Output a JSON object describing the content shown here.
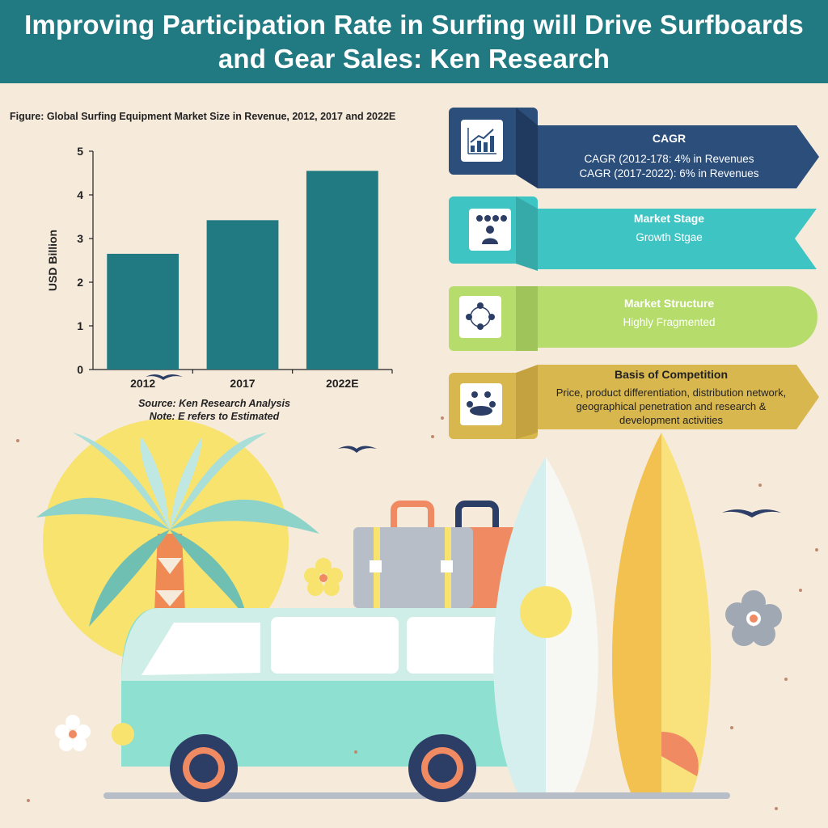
{
  "header": {
    "title": "Improving Participation Rate in Surfing will Drive Surfboards and Gear Sales: Ken Research"
  },
  "figure": {
    "caption": "Figure: Global Surfing Equipment Market Size in Revenue, 2012, 2017 and 2022E",
    "source": "Source: Ken Research Analysis",
    "note": "Note: E refers to Estimated"
  },
  "chart_data": {
    "type": "bar",
    "title": "Figure: Global Surfing Equipment Market Size in Revenue, 2012, 2017 and 2022E",
    "categories": [
      "2012",
      "2017",
      "2022E"
    ],
    "values": [
      2.65,
      3.42,
      4.55
    ],
    "ylabel": "USD Billion",
    "xlabel": "",
    "ylim": [
      0,
      5
    ],
    "yticks": [
      "0",
      "1",
      "2",
      "3",
      "4",
      "5"
    ],
    "bar_color": "#217a82",
    "grid": false
  },
  "cards": [
    {
      "title": "CAGR",
      "lines": [
        "CAGR (2012-178: 4% in Revenues",
        "CAGR (2017-2022): 6% in Revenues"
      ],
      "color": "#2b4e7a",
      "icon": "growth-chart-icon"
    },
    {
      "title": "Market Stage",
      "lines": [
        "Growth Stgae"
      ],
      "color": "#3fc4c4",
      "icon": "presenter-icon"
    },
    {
      "title": "Market Structure",
      "lines": [
        "Highly Fragmented"
      ],
      "color": "#b6dc6c",
      "icon": "network-people-icon"
    },
    {
      "title": "Basis of Competition",
      "lines": [
        "Price, product differentiation, distribution network,",
        "geographical penetration and research &",
        "development activities"
      ],
      "color": "#d9b74f",
      "icon": "meeting-table-icon"
    }
  ],
  "colors": {
    "header": "#217a82",
    "background": "#f6eadb"
  }
}
